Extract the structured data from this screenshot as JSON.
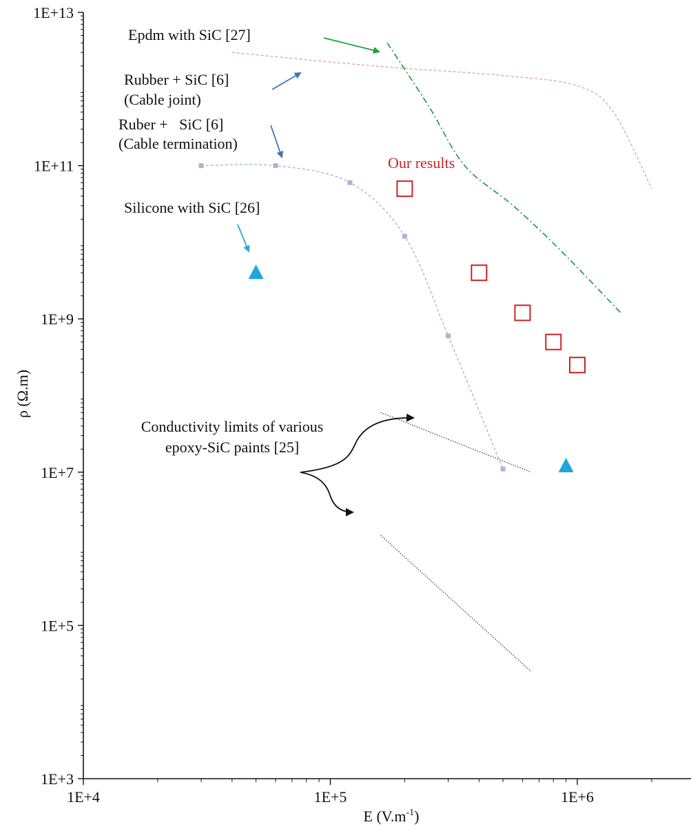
{
  "chart_data": {
    "type": "scatter",
    "title": "",
    "xlabel": "E (V.m",
    "xlabel_superscript": "-1",
    "xlabel_close": ")",
    "ylabel": "ρ (Ω.m)",
    "x_scale": "log",
    "y_scale": "log",
    "xlim": [
      10000,
      3000000
    ],
    "ylim": [
      1000,
      10000000000000
    ],
    "grid": false,
    "x_ticks": [
      {
        "value": 10000,
        "label": "1E+4"
      },
      {
        "value": 100000,
        "label": "1E+5"
      },
      {
        "value": 1000000,
        "label": "1E+6"
      }
    ],
    "y_ticks": [
      {
        "value": 1000,
        "label": "1E+3"
      },
      {
        "value": 100000,
        "label": "1E+5"
      },
      {
        "value": 10000000,
        "label": "1E+7"
      },
      {
        "value": 1000000000,
        "label": "1E+9"
      },
      {
        "value": 100000000000,
        "label": "1E+11"
      },
      {
        "value": 10000000000000,
        "label": "1E+13"
      }
    ],
    "series": [
      {
        "key": "epdm",
        "style": "dash-dot",
        "color": "#1a9641",
        "points": [
          [
            170000,
            4000000000000
          ],
          [
            250000,
            600000000000
          ],
          [
            350000,
            100000000000
          ],
          [
            550000,
            30000000000
          ],
          [
            850000,
            8000000000
          ],
          [
            1500000,
            1200000000
          ]
        ]
      },
      {
        "key": "rubber_joint",
        "style": "dashed",
        "color": "#e5a6a6",
        "points": [
          [
            40000,
            3000000000000
          ],
          [
            150000,
            2000000000000
          ],
          [
            500000,
            1500000000000
          ],
          [
            1000000,
            1100000000000
          ],
          [
            1400000,
            500000000000
          ],
          [
            2000000,
            50000000000
          ]
        ]
      },
      {
        "key": "rubber_termination",
        "style": "dashed-markers",
        "color": "#a9b6d2",
        "points": [
          [
            30000,
            100000000000
          ],
          [
            60000,
            100000000000
          ],
          [
            120000,
            60000000000
          ],
          [
            200000,
            12000000000
          ],
          [
            300000,
            600000000
          ],
          [
            500000,
            11000000
          ]
        ]
      },
      {
        "key": "epoxy_upper",
        "style": "dotted",
        "color": "#444444",
        "points": [
          [
            160000,
            60000000
          ],
          [
            650000,
            10000000
          ]
        ]
      },
      {
        "key": "epoxy_lower",
        "style": "dotted",
        "color": "#444444",
        "points": [
          [
            160000,
            1500000
          ],
          [
            650000,
            25000
          ]
        ]
      },
      {
        "key": "our_results",
        "style": "open-square",
        "color": "#cc2222",
        "points": [
          [
            200000,
            50000000000
          ],
          [
            400000,
            4000000000
          ],
          [
            600000,
            1200000000
          ],
          [
            800000,
            500000000
          ],
          [
            1000000,
            250000000
          ]
        ]
      },
      {
        "key": "silicone",
        "style": "filled-triangle",
        "color": "#1ea6e0",
        "points": [
          [
            50000,
            4000000000
          ],
          [
            900000,
            12000000
          ]
        ]
      }
    ],
    "annotations": [
      {
        "key": "epdm",
        "lines": [
          "Epdm with SiC [27]"
        ],
        "color": "#111111"
      },
      {
        "key": "rubber_joint",
        "lines": [
          "Rubber + SiC [6]",
          "(Cable joint)"
        ],
        "color": "#111111"
      },
      {
        "key": "rubber_termination",
        "lines": [
          "Ruber +   SiC [6]",
          "(Cable termination)"
        ],
        "color": "#111111"
      },
      {
        "key": "our_results",
        "lines": [
          "Our results"
        ],
        "color": "#cc2222"
      },
      {
        "key": "silicone",
        "lines": [
          "Silicone with SiC [26]"
        ],
        "color": "#111111"
      },
      {
        "key": "epoxy",
        "lines": [
          "Conductivity limits of various",
          "epoxy-SiC paints [25]"
        ],
        "color": "#111111"
      }
    ],
    "arrow_colors": {
      "epdm": "#1a9e3a",
      "rubber": "#3f74b8",
      "silicone": "#2ba8e0",
      "epoxy": "#111111"
    }
  }
}
